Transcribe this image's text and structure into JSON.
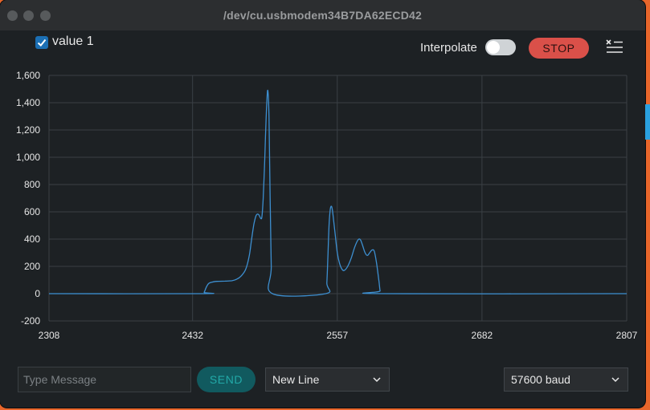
{
  "window": {
    "title": "/dev/cu.usbmodem34B7DA62ECD42",
    "traffic_lights": [
      "close",
      "minimize",
      "zoom"
    ]
  },
  "toolbar": {
    "series_checked": true,
    "series_label": "value 1",
    "interpolate_label": "Interpolate",
    "interpolate_on": false,
    "stop_label": "STOP",
    "clear_icon": "clear-list-icon"
  },
  "colors": {
    "background": "#1d2124",
    "grid": "#3a4045",
    "series": "#3d8fd0",
    "stop": "#da5049",
    "send": "#115a5f",
    "checkbox": "#1b6fb4"
  },
  "chart_data": {
    "type": "line",
    "xlim": [
      2308,
      2807
    ],
    "ylim": [
      -200,
      1600
    ],
    "x_ticks": [
      "2308",
      "2432",
      "2557",
      "2682",
      "2807"
    ],
    "y_ticks": [
      "1,600",
      "1,400",
      "1,200",
      "1,000",
      "800",
      "600",
      "400",
      "200",
      "0",
      "-200"
    ],
    "grid": true,
    "series": [
      {
        "color": "#3d8fd0",
        "points": [
          [
            2308,
            0
          ],
          [
            2440,
            0
          ],
          [
            2442,
            10
          ],
          [
            2444,
            50
          ],
          [
            2446,
            75
          ],
          [
            2449,
            85
          ],
          [
            2453,
            90
          ],
          [
            2460,
            92
          ],
          [
            2466,
            95
          ],
          [
            2470,
            105
          ],
          [
            2474,
            130
          ],
          [
            2478,
            180
          ],
          [
            2481,
            280
          ],
          [
            2483,
            400
          ],
          [
            2485,
            510
          ],
          [
            2487,
            575
          ],
          [
            2489,
            580
          ],
          [
            2491,
            550
          ],
          [
            2492,
            570
          ],
          [
            2493,
            700
          ],
          [
            2494,
            900
          ],
          [
            2495,
            1150
          ],
          [
            2496,
            1380
          ],
          [
            2497,
            1490
          ],
          [
            2498,
            1300
          ],
          [
            2499,
            700
          ],
          [
            2500,
            200
          ],
          [
            2501,
            0
          ],
          [
            2547,
            0
          ],
          [
            2548,
            80
          ],
          [
            2549,
            300
          ],
          [
            2550,
            520
          ],
          [
            2551,
            620
          ],
          [
            2552,
            640
          ],
          [
            2553,
            600
          ],
          [
            2555,
            450
          ],
          [
            2557,
            300
          ],
          [
            2559,
            220
          ],
          [
            2561,
            180
          ],
          [
            2563,
            170
          ],
          [
            2566,
            200
          ],
          [
            2569,
            260
          ],
          [
            2572,
            340
          ],
          [
            2575,
            395
          ],
          [
            2577,
            395
          ],
          [
            2579,
            350
          ],
          [
            2581,
            300
          ],
          [
            2583,
            280
          ],
          [
            2585,
            300
          ],
          [
            2587,
            320
          ],
          [
            2589,
            310
          ],
          [
            2591,
            220
          ],
          [
            2593,
            90
          ],
          [
            2594,
            20
          ],
          [
            2595,
            0
          ],
          [
            2807,
            0
          ]
        ]
      }
    ]
  },
  "composer": {
    "placeholder": "Type Message",
    "value": "",
    "send_label": "SEND",
    "line_ending": "New Line",
    "baud_rate": "57600 baud"
  }
}
